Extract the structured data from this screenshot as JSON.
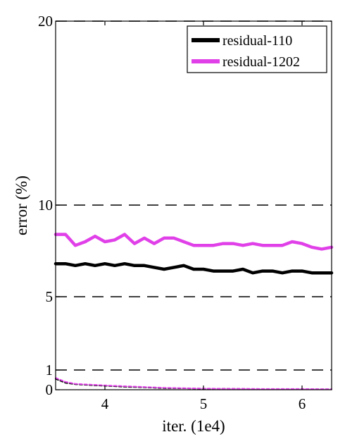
{
  "chart_data": {
    "type": "line",
    "title": "",
    "xlabel": "iter. (1e4)",
    "ylabel": "error (%)",
    "xlim": [
      3.5,
      6.3
    ],
    "ylim": [
      0,
      20
    ],
    "xticks": [
      4,
      5,
      6
    ],
    "xtick_labels": [
      "4",
      "5",
      "6"
    ],
    "yticks": [
      0,
      1,
      5,
      10,
      20
    ],
    "ytick_labels": [
      "0",
      "1",
      "5",
      "10",
      "20"
    ],
    "grid": "dashed horizontal lines at y = 1, 5, 10, 20",
    "legend_position": "top-right",
    "series": [
      {
        "name": "residual-110",
        "role": "test",
        "color": "#000000",
        "x": [
          3.5,
          3.6,
          3.7,
          3.8,
          3.9,
          4.0,
          4.1,
          4.2,
          4.3,
          4.4,
          4.5,
          4.6,
          4.7,
          4.8,
          4.9,
          5.0,
          5.1,
          5.2,
          5.3,
          5.4,
          5.5,
          5.6,
          5.7,
          5.8,
          5.9,
          6.0,
          6.1,
          6.2,
          6.3
        ],
        "y": [
          6.8,
          6.8,
          6.7,
          6.8,
          6.7,
          6.8,
          6.7,
          6.8,
          6.7,
          6.7,
          6.6,
          6.5,
          6.6,
          6.7,
          6.5,
          6.5,
          6.4,
          6.4,
          6.4,
          6.5,
          6.3,
          6.4,
          6.4,
          6.3,
          6.4,
          6.4,
          6.3,
          6.3,
          6.3
        ]
      },
      {
        "name": "residual-1202",
        "role": "test",
        "color": "#e040e8",
        "x": [
          3.5,
          3.6,
          3.7,
          3.8,
          3.9,
          4.0,
          4.1,
          4.2,
          4.3,
          4.4,
          4.5,
          4.6,
          4.7,
          4.8,
          4.9,
          5.0,
          5.1,
          5.2,
          5.3,
          5.4,
          5.5,
          5.6,
          5.7,
          5.8,
          5.9,
          6.0,
          6.1,
          6.2,
          6.3
        ],
        "y": [
          8.4,
          8.4,
          7.8,
          8.0,
          8.3,
          8.0,
          8.1,
          8.4,
          7.9,
          8.2,
          7.9,
          8.2,
          8.2,
          8.0,
          7.8,
          7.8,
          7.8,
          7.9,
          7.9,
          7.8,
          7.9,
          7.8,
          7.8,
          7.8,
          8.0,
          7.9,
          7.7,
          7.6,
          7.7
        ]
      },
      {
        "name": "residual-110",
        "role": "train",
        "color": "#000000",
        "x": [
          3.5,
          3.6,
          3.7,
          3.8,
          3.9,
          4.0,
          4.2,
          4.4,
          4.6,
          4.8,
          5.0,
          5.2,
          5.4,
          5.6,
          5.8,
          6.0,
          6.3
        ],
        "y": [
          0.55,
          0.35,
          0.28,
          0.25,
          0.22,
          0.2,
          0.15,
          0.12,
          0.08,
          0.07,
          0.05,
          0.05,
          0.04,
          0.03,
          0.03,
          0.03,
          0.02
        ]
      },
      {
        "name": "residual-1202",
        "role": "train",
        "color": "#e040e8",
        "x": [
          3.5,
          3.6,
          3.7,
          3.8,
          3.9,
          4.0,
          4.2,
          4.4,
          4.6,
          4.8,
          5.0,
          5.2,
          5.4,
          5.6,
          5.8,
          6.0,
          6.3
        ],
        "y": [
          0.6,
          0.4,
          0.3,
          0.27,
          0.25,
          0.22,
          0.18,
          0.14,
          0.1,
          0.08,
          0.06,
          0.05,
          0.05,
          0.04,
          0.04,
          0.04,
          0.03
        ]
      }
    ],
    "legend": [
      {
        "label": "residual-110",
        "color": "#000000"
      },
      {
        "label": "residual-1202",
        "color": "#e040e8"
      }
    ]
  }
}
